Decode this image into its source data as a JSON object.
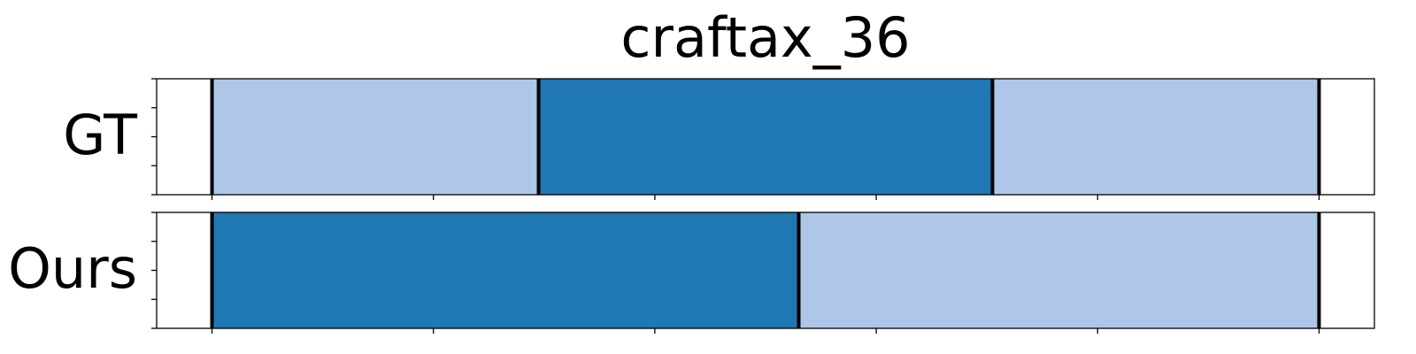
{
  "chart_data": {
    "type": "bar",
    "title": "craftax_36",
    "xlabel": "",
    "ylabel": "",
    "xlim": [
      -0.5,
      10.5
    ],
    "rows": [
      {
        "label": "GT",
        "segments": [
          {
            "start": 0,
            "end": 2.95,
            "color": "#aec7e8"
          },
          {
            "start": 2.95,
            "end": 7.05,
            "color": "#1f77b4"
          },
          {
            "start": 7.05,
            "end": 10,
            "color": "#aec7e8"
          }
        ],
        "boundaries": [
          0,
          2.95,
          7.05,
          10
        ]
      },
      {
        "label": "Ours",
        "segments": [
          {
            "start": 0,
            "end": 5.3,
            "color": "#1f77b4"
          },
          {
            "start": 5.3,
            "end": 10,
            "color": "#aec7e8"
          }
        ],
        "boundaries": [
          0,
          5.3,
          10
        ]
      }
    ],
    "x_ticks": [
      0,
      2,
      4,
      6,
      8,
      10
    ],
    "x_tick_labels": [],
    "grid": false,
    "legend": "none"
  },
  "colors": {
    "dark_segment": "#1f77b4",
    "light_segment": "#aec7e8",
    "boundary": "#000000"
  }
}
